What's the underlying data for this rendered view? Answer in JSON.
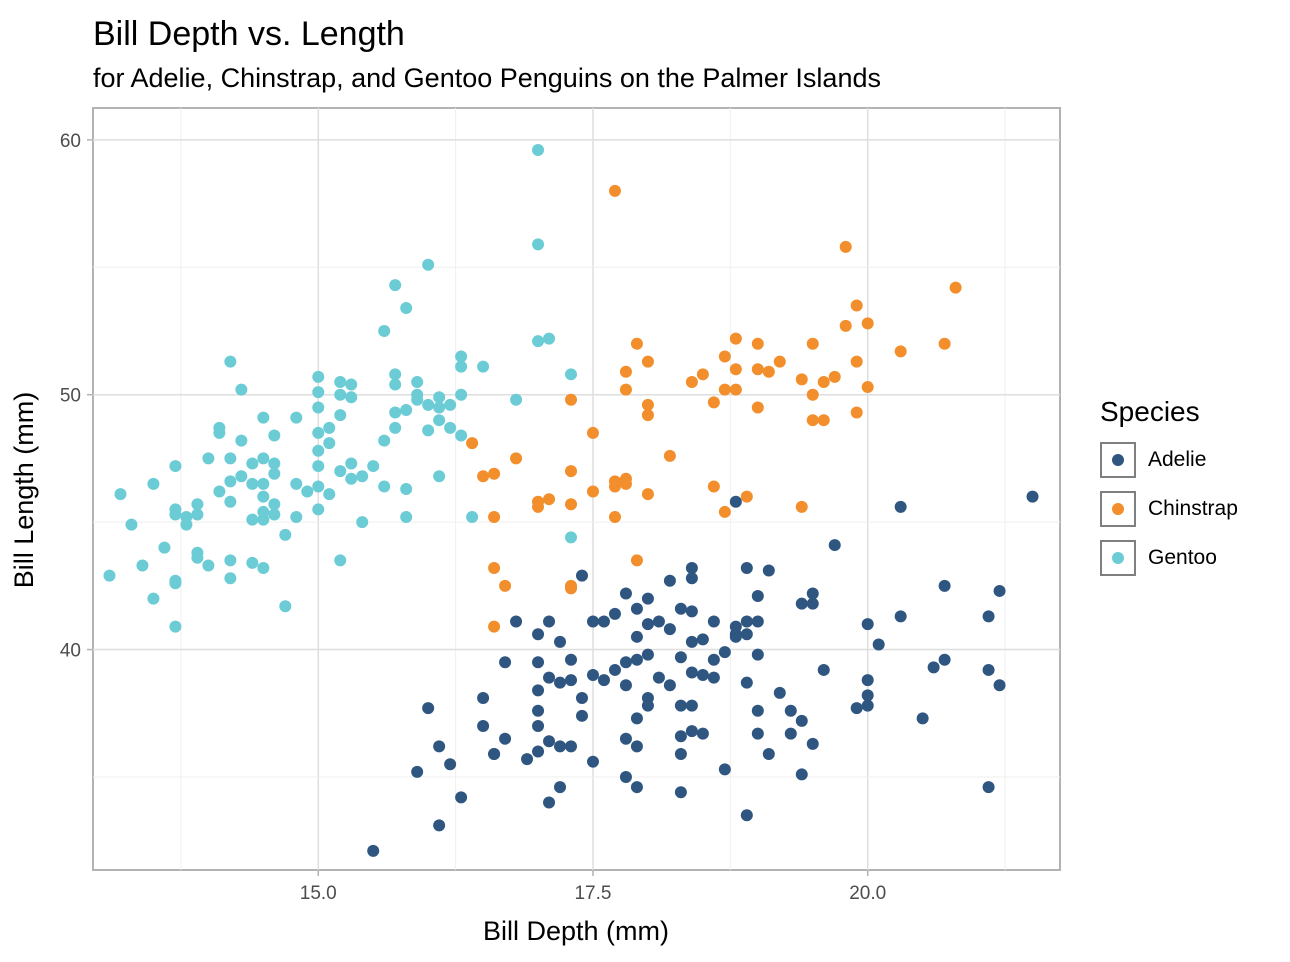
{
  "chart_data": {
    "type": "scatter",
    "title": "Bill Depth vs. Length",
    "subtitle": "for Adelie, Chinstrap, and Gentoo Penguins on the Palmer Islands",
    "xlabel": "Bill Depth (mm)",
    "ylabel": "Bill Length (mm)",
    "xlim": [
      12.95,
      21.75
    ],
    "ylim": [
      31.35,
      61.25
    ],
    "x_ticks": [
      15.0,
      17.5,
      20.0
    ],
    "x_tick_labels": [
      "15.0",
      "17.5",
      "20.0"
    ],
    "y_ticks": [
      40,
      50,
      60
    ],
    "y_tick_labels": [
      "40",
      "50",
      "60"
    ],
    "grid": true,
    "legend": {
      "title": "Species",
      "position": "right"
    },
    "series": [
      {
        "name": "Adelie",
        "color": "#2f5680",
        "points": [
          [
            21.5,
            46.0
          ],
          [
            21.2,
            42.3
          ],
          [
            21.2,
            38.6
          ],
          [
            21.1,
            41.3
          ],
          [
            21.1,
            39.2
          ],
          [
            21.1,
            34.6
          ],
          [
            20.7,
            42.5
          ],
          [
            20.7,
            39.6
          ],
          [
            20.6,
            39.3
          ],
          [
            20.5,
            37.3
          ],
          [
            20.3,
            45.6
          ],
          [
            20.3,
            41.3
          ],
          [
            20.1,
            40.2
          ],
          [
            20.0,
            41.0
          ],
          [
            20.0,
            38.8
          ],
          [
            20.0,
            38.2
          ],
          [
            20.0,
            37.8
          ],
          [
            19.9,
            37.7
          ],
          [
            19.7,
            44.1
          ],
          [
            19.6,
            39.2
          ],
          [
            19.5,
            42.2
          ],
          [
            19.5,
            41.8
          ],
          [
            19.5,
            36.3
          ],
          [
            19.4,
            41.8
          ],
          [
            19.4,
            37.2
          ],
          [
            19.4,
            35.1
          ],
          [
            19.3,
            37.6
          ],
          [
            19.3,
            36.7
          ],
          [
            19.2,
            38.3
          ],
          [
            19.1,
            43.1
          ],
          [
            19.1,
            35.9
          ],
          [
            19.0,
            42.1
          ],
          [
            19.0,
            41.1
          ],
          [
            19.0,
            39.8
          ],
          [
            19.0,
            37.6
          ],
          [
            19.0,
            36.7
          ],
          [
            18.9,
            43.2
          ],
          [
            18.9,
            41.1
          ],
          [
            18.9,
            40.6
          ],
          [
            18.9,
            38.7
          ],
          [
            18.9,
            33.5
          ],
          [
            18.8,
            45.8
          ],
          [
            18.8,
            40.9
          ],
          [
            18.8,
            40.6
          ],
          [
            18.8,
            40.5
          ],
          [
            18.7,
            39.9
          ],
          [
            18.7,
            35.3
          ],
          [
            18.6,
            41.1
          ],
          [
            18.6,
            39.6
          ],
          [
            18.6,
            38.9
          ],
          [
            18.5,
            40.4
          ],
          [
            18.5,
            39.0
          ],
          [
            18.5,
            36.7
          ],
          [
            18.4,
            43.2
          ],
          [
            18.4,
            42.8
          ],
          [
            18.4,
            41.5
          ],
          [
            18.4,
            40.3
          ],
          [
            18.4,
            39.1
          ],
          [
            18.4,
            37.8
          ],
          [
            18.4,
            36.8
          ],
          [
            18.3,
            41.6
          ],
          [
            18.3,
            39.7
          ],
          [
            18.3,
            37.8
          ],
          [
            18.3,
            36.6
          ],
          [
            18.3,
            35.9
          ],
          [
            18.3,
            34.4
          ],
          [
            18.2,
            42.7
          ],
          [
            18.2,
            40.8
          ],
          [
            18.2,
            38.6
          ],
          [
            18.1,
            41.1
          ],
          [
            18.1,
            38.9
          ],
          [
            18.0,
            42.0
          ],
          [
            18.0,
            41.0
          ],
          [
            18.0,
            39.8
          ],
          [
            18.0,
            38.1
          ],
          [
            18.0,
            37.8
          ],
          [
            17.9,
            41.6
          ],
          [
            17.9,
            40.5
          ],
          [
            17.9,
            39.6
          ],
          [
            17.9,
            37.3
          ],
          [
            17.9,
            36.2
          ],
          [
            17.9,
            34.6
          ],
          [
            17.8,
            42.2
          ],
          [
            17.8,
            39.5
          ],
          [
            17.8,
            38.6
          ],
          [
            17.8,
            36.5
          ],
          [
            17.8,
            35.0
          ],
          [
            17.7,
            41.4
          ],
          [
            17.7,
            39.2
          ],
          [
            17.6,
            41.1
          ],
          [
            17.6,
            38.8
          ],
          [
            17.5,
            41.1
          ],
          [
            17.5,
            39.0
          ],
          [
            17.5,
            35.6
          ],
          [
            17.4,
            42.9
          ],
          [
            17.4,
            38.1
          ],
          [
            17.4,
            37.4
          ],
          [
            17.3,
            39.6
          ],
          [
            17.3,
            38.8
          ],
          [
            17.3,
            36.2
          ],
          [
            17.2,
            40.3
          ],
          [
            17.2,
            38.7
          ],
          [
            17.2,
            36.2
          ],
          [
            17.2,
            34.6
          ],
          [
            17.1,
            41.1
          ],
          [
            17.1,
            38.9
          ],
          [
            17.1,
            36.4
          ],
          [
            17.1,
            34.0
          ],
          [
            17.0,
            40.6
          ],
          [
            17.0,
            39.5
          ],
          [
            17.0,
            38.4
          ],
          [
            17.0,
            37.6
          ],
          [
            17.0,
            37.0
          ],
          [
            17.0,
            36.0
          ],
          [
            16.9,
            35.7
          ],
          [
            16.8,
            41.1
          ],
          [
            16.7,
            39.5
          ],
          [
            16.7,
            36.5
          ],
          [
            16.6,
            35.9
          ],
          [
            16.6,
            35.9
          ],
          [
            16.5,
            38.1
          ],
          [
            16.5,
            37.0
          ],
          [
            16.3,
            34.2
          ],
          [
            16.2,
            35.5
          ],
          [
            16.1,
            36.2
          ],
          [
            16.1,
            33.1
          ],
          [
            16.0,
            37.7
          ],
          [
            15.9,
            35.2
          ],
          [
            15.5,
            32.1
          ]
        ]
      },
      {
        "name": "Chinstrap",
        "color": "#f28e2b",
        "points": [
          [
            20.8,
            54.2
          ],
          [
            20.7,
            52.0
          ],
          [
            20.3,
            51.7
          ],
          [
            20.0,
            52.8
          ],
          [
            20.0,
            50.3
          ],
          [
            19.9,
            53.5
          ],
          [
            19.9,
            51.3
          ],
          [
            19.9,
            49.3
          ],
          [
            19.8,
            55.8
          ],
          [
            19.8,
            52.7
          ],
          [
            19.7,
            50.7
          ],
          [
            19.6,
            50.5
          ],
          [
            19.6,
            49.0
          ],
          [
            19.5,
            52.0
          ],
          [
            19.5,
            50.0
          ],
          [
            19.5,
            49.0
          ],
          [
            19.4,
            50.6
          ],
          [
            19.4,
            45.6
          ],
          [
            19.2,
            51.3
          ],
          [
            19.1,
            50.9
          ],
          [
            19.0,
            52.0
          ],
          [
            19.0,
            51.0
          ],
          [
            19.0,
            49.5
          ],
          [
            18.9,
            46.0
          ],
          [
            18.8,
            52.2
          ],
          [
            18.8,
            51.0
          ],
          [
            18.8,
            50.2
          ],
          [
            18.7,
            51.5
          ],
          [
            18.7,
            50.2
          ],
          [
            18.7,
            45.4
          ],
          [
            18.6,
            49.7
          ],
          [
            18.6,
            46.4
          ],
          [
            18.5,
            50.8
          ],
          [
            18.4,
            50.5
          ],
          [
            18.2,
            47.6
          ],
          [
            18.0,
            51.3
          ],
          [
            18.0,
            49.6
          ],
          [
            18.0,
            49.2
          ],
          [
            18.0,
            46.1
          ],
          [
            17.9,
            52.0
          ],
          [
            17.9,
            43.5
          ],
          [
            17.8,
            50.9
          ],
          [
            17.8,
            50.2
          ],
          [
            17.8,
            46.7
          ],
          [
            17.8,
            46.5
          ],
          [
            17.7,
            58.0
          ],
          [
            17.7,
            46.6
          ],
          [
            17.7,
            46.4
          ],
          [
            17.7,
            45.2
          ],
          [
            17.5,
            48.5
          ],
          [
            17.5,
            46.2
          ],
          [
            17.3,
            49.8
          ],
          [
            17.3,
            47.0
          ],
          [
            17.3,
            45.7
          ],
          [
            17.3,
            42.5
          ],
          [
            17.3,
            42.4
          ],
          [
            17.1,
            45.9
          ],
          [
            17.0,
            45.8
          ],
          [
            17.0,
            45.6
          ],
          [
            16.8,
            47.5
          ],
          [
            16.7,
            42.5
          ],
          [
            16.6,
            46.9
          ],
          [
            16.6,
            45.2
          ],
          [
            16.6,
            43.2
          ],
          [
            16.6,
            40.9
          ],
          [
            16.5,
            46.8
          ],
          [
            16.4,
            48.1
          ]
        ]
      },
      {
        "name": "Gentoo",
        "color": "#6cccd6",
        "points": [
          [
            17.0,
            59.6
          ],
          [
            17.0,
            55.9
          ],
          [
            17.1,
            52.2
          ],
          [
            17.0,
            52.1
          ],
          [
            17.3,
            50.8
          ],
          [
            17.3,
            44.4
          ],
          [
            16.8,
            49.8
          ],
          [
            16.4,
            45.2
          ],
          [
            16.5,
            51.1
          ],
          [
            16.3,
            51.5
          ],
          [
            16.3,
            51.1
          ],
          [
            16.3,
            50.0
          ],
          [
            16.3,
            48.4
          ],
          [
            16.2,
            49.6
          ],
          [
            16.2,
            48.7
          ],
          [
            16.1,
            49.9
          ],
          [
            16.1,
            49.5
          ],
          [
            16.1,
            49.0
          ],
          [
            16.1,
            46.8
          ],
          [
            16.0,
            55.1
          ],
          [
            16.0,
            49.6
          ],
          [
            16.0,
            48.6
          ],
          [
            15.9,
            50.5
          ],
          [
            15.9,
            50.0
          ],
          [
            15.9,
            49.8
          ],
          [
            15.8,
            53.4
          ],
          [
            15.8,
            49.4
          ],
          [
            15.8,
            46.3
          ],
          [
            15.8,
            45.2
          ],
          [
            15.7,
            54.3
          ],
          [
            15.7,
            50.8
          ],
          [
            15.7,
            50.4
          ],
          [
            15.7,
            49.3
          ],
          [
            15.7,
            48.7
          ],
          [
            15.6,
            52.5
          ],
          [
            15.6,
            48.2
          ],
          [
            15.6,
            46.4
          ],
          [
            15.5,
            47.2
          ],
          [
            15.4,
            46.8
          ],
          [
            15.4,
            45.0
          ],
          [
            15.3,
            50.4
          ],
          [
            15.3,
            49.9
          ],
          [
            15.3,
            47.3
          ],
          [
            15.3,
            46.7
          ],
          [
            15.2,
            50.5
          ],
          [
            15.2,
            50.0
          ],
          [
            15.2,
            49.2
          ],
          [
            15.2,
            47.0
          ],
          [
            15.2,
            43.5
          ],
          [
            15.1,
            48.7
          ],
          [
            15.1,
            48.1
          ],
          [
            15.1,
            46.1
          ],
          [
            15.0,
            50.7
          ],
          [
            15.0,
            50.1
          ],
          [
            15.0,
            49.5
          ],
          [
            15.0,
            48.5
          ],
          [
            15.0,
            47.8
          ],
          [
            15.0,
            47.2
          ],
          [
            15.0,
            46.4
          ],
          [
            15.0,
            45.5
          ],
          [
            14.9,
            46.2
          ],
          [
            14.8,
            49.1
          ],
          [
            14.8,
            46.5
          ],
          [
            14.8,
            45.2
          ],
          [
            14.7,
            44.5
          ],
          [
            14.7,
            41.7
          ],
          [
            14.6,
            48.4
          ],
          [
            14.6,
            47.3
          ],
          [
            14.6,
            46.9
          ],
          [
            14.6,
            45.7
          ],
          [
            14.6,
            45.3
          ],
          [
            14.5,
            49.1
          ],
          [
            14.5,
            47.5
          ],
          [
            14.5,
            46.5
          ],
          [
            14.5,
            46.0
          ],
          [
            14.5,
            45.4
          ],
          [
            14.5,
            45.1
          ],
          [
            14.5,
            43.2
          ],
          [
            14.4,
            47.3
          ],
          [
            14.4,
            46.5
          ],
          [
            14.4,
            45.1
          ],
          [
            14.4,
            43.4
          ],
          [
            14.3,
            50.2
          ],
          [
            14.3,
            48.2
          ],
          [
            14.3,
            46.8
          ],
          [
            14.2,
            51.3
          ],
          [
            14.2,
            47.5
          ],
          [
            14.2,
            46.6
          ],
          [
            14.2,
            45.8
          ],
          [
            14.2,
            43.5
          ],
          [
            14.2,
            42.8
          ],
          [
            14.1,
            48.7
          ],
          [
            14.1,
            48.5
          ],
          [
            14.1,
            46.2
          ],
          [
            14.0,
            47.5
          ],
          [
            14.0,
            43.3
          ],
          [
            13.9,
            45.7
          ],
          [
            13.9,
            45.3
          ],
          [
            13.9,
            43.8
          ],
          [
            13.9,
            43.6
          ],
          [
            13.8,
            45.2
          ],
          [
            13.8,
            44.9
          ],
          [
            13.7,
            47.2
          ],
          [
            13.7,
            45.5
          ],
          [
            13.7,
            45.3
          ],
          [
            13.7,
            42.7
          ],
          [
            13.7,
            42.6
          ],
          [
            13.7,
            40.9
          ],
          [
            13.6,
            44.0
          ],
          [
            13.5,
            46.5
          ],
          [
            13.5,
            42.0
          ],
          [
            13.4,
            43.3
          ],
          [
            13.3,
            44.9
          ],
          [
            13.2,
            46.1
          ],
          [
            13.1,
            42.9
          ]
        ]
      }
    ]
  }
}
